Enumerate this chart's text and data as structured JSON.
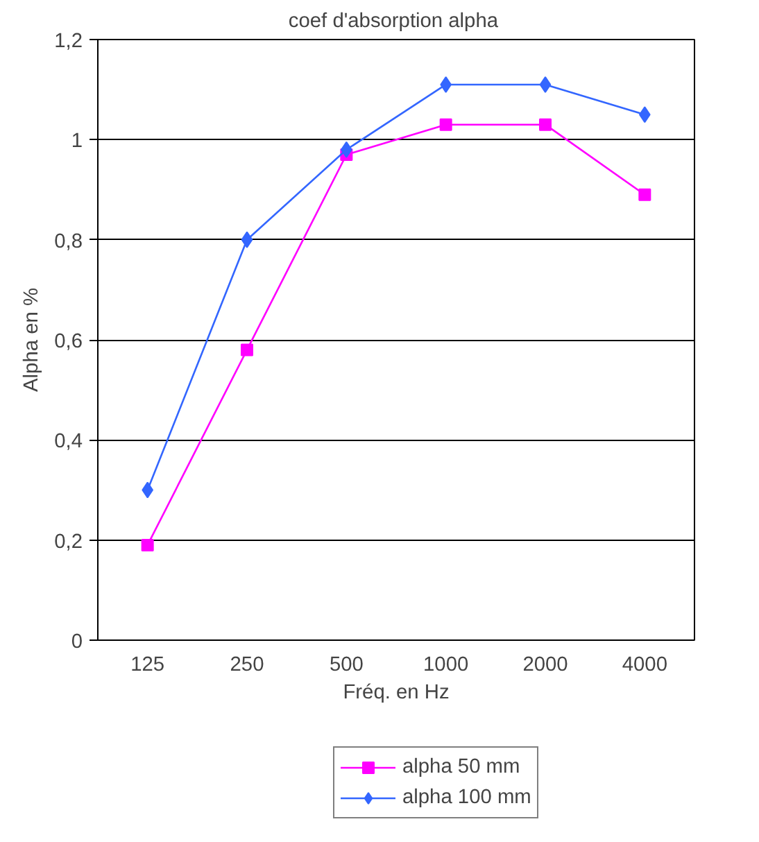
{
  "chart_data": {
    "type": "line",
    "title": "coef  d'absorption alpha",
    "xlabel": "Fréq. en Hz",
    "ylabel": "Alpha en %",
    "categories": [
      "125",
      "250",
      "500",
      "1000",
      "2000",
      "4000"
    ],
    "series": [
      {
        "name": "alpha 50 mm",
        "color": "#ff00ff",
        "marker": "square",
        "values": [
          0.19,
          0.58,
          0.97,
          1.03,
          1.03,
          0.89
        ]
      },
      {
        "name": "alpha 100 mm",
        "color": "#3366ff",
        "marker": "diamond",
        "values": [
          0.3,
          0.8,
          0.98,
          1.11,
          1.11,
          1.05
        ]
      }
    ],
    "ylim": [
      0,
      1.2
    ],
    "yticks": [
      {
        "value": 0,
        "label": "0"
      },
      {
        "value": 0.2,
        "label": "0,2"
      },
      {
        "value": 0.4,
        "label": "0,4"
      },
      {
        "value": 0.6,
        "label": "0,6"
      },
      {
        "value": 0.8,
        "label": "0,8"
      },
      {
        "value": 1,
        "label": "1"
      },
      {
        "value": 1.2,
        "label": "1,2"
      }
    ],
    "grid": "y",
    "legend": "bottom",
    "line_style": "solid"
  }
}
